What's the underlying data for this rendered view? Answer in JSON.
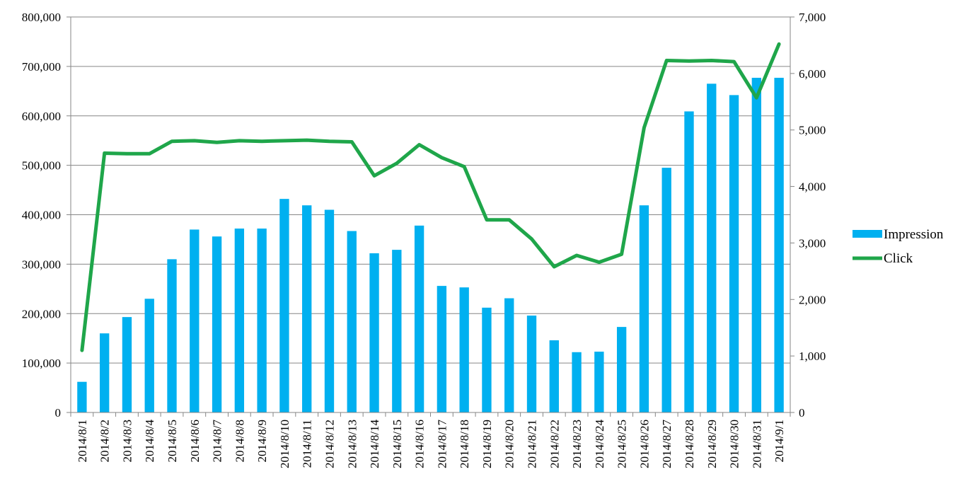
{
  "chart_data": {
    "type": "bar",
    "categories": [
      "2014/8/1",
      "2014/8/2",
      "2014/8/3",
      "2014/8/4",
      "2014/8/5",
      "2014/8/6",
      "2014/8/7",
      "2014/8/8",
      "2014/8/9",
      "2014/8/10",
      "2014/8/11",
      "2014/8/12",
      "2014/8/13",
      "2014/8/14",
      "2014/8/15",
      "2014/8/16",
      "2014/8/17",
      "2014/8/18",
      "2014/8/19",
      "2014/8/20",
      "2014/8/21",
      "2014/8/22",
      "2014/8/23",
      "2014/8/24",
      "2014/8/25",
      "2014/8/26",
      "2014/8/27",
      "2014/8/28",
      "2014/8/29",
      "2014/8/30",
      "2014/8/31",
      "2014/9/1"
    ],
    "series": [
      {
        "name": "Impression",
        "type": "bar",
        "axis": "left",
        "color": "#00b0f0",
        "values": [
          62000,
          160000,
          193000,
          230000,
          310000,
          370000,
          356000,
          372000,
          372000,
          432000,
          419000,
          410000,
          367000,
          322000,
          329000,
          378000,
          256000,
          253000,
          212000,
          231000,
          196000,
          146000,
          122000,
          123000,
          173000,
          419000,
          495000,
          609000,
          665000,
          642000,
          677000,
          677000
        ]
      },
      {
        "name": "Click",
        "type": "line",
        "axis": "right",
        "color": "#1fa64a",
        "values": [
          1100,
          4590,
          4580,
          4580,
          4800,
          4810,
          4780,
          4810,
          4800,
          4810,
          4820,
          4800,
          4790,
          4190,
          4410,
          4740,
          4510,
          4350,
          3410,
          3410,
          3070,
          2580,
          2780,
          2660,
          2800,
          5040,
          6230,
          6220,
          6230,
          6210,
          5570,
          6520
        ]
      }
    ],
    "ylim_left": [
      0,
      800000
    ],
    "ylim_right": [
      0,
      7000
    ],
    "yticks_left": [
      "0",
      "100,000",
      "200,000",
      "300,000",
      "400,000",
      "500,000",
      "600,000",
      "700,000",
      "800,000"
    ],
    "yticks_right": [
      "0",
      "1,000",
      "2,000",
      "3,000",
      "4,000",
      "5,000",
      "6,000",
      "7,000"
    ],
    "grid": true,
    "legend_position": "right"
  }
}
